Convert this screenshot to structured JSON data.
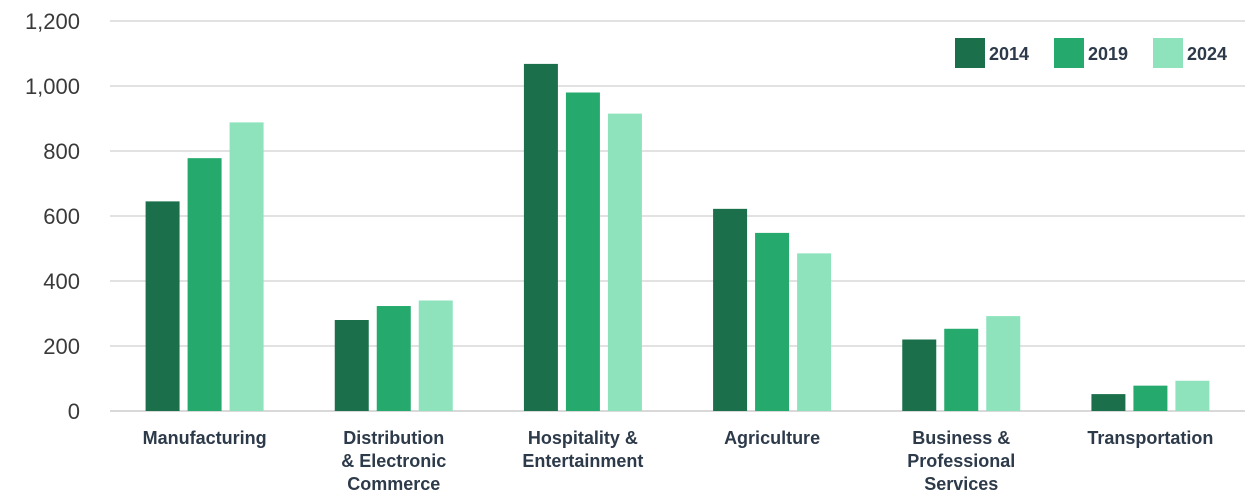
{
  "chart_data": {
    "type": "bar",
    "title": "",
    "xlabel": "",
    "ylabel": "",
    "ylim": [
      0,
      1200
    ],
    "yticks": [
      0,
      200,
      400,
      600,
      800,
      1000,
      1200
    ],
    "ytick_labels": [
      "0",
      "200",
      "400",
      "600",
      "800",
      "1,000",
      "1,200"
    ],
    "grid": true,
    "legend_position": "top-right",
    "categories": [
      [
        "Manufacturing"
      ],
      [
        "Distribution",
        "& Electronic",
        "Commerce"
      ],
      [
        "Hospitality &",
        "Entertainment"
      ],
      [
        "Agriculture"
      ],
      [
        "Business &",
        "Professional",
        "Services"
      ],
      [
        "Transportation"
      ]
    ],
    "series": [
      {
        "name": "2014",
        "color": "#1b704b",
        "values": [
          645,
          280,
          1068,
          622,
          220,
          52
        ]
      },
      {
        "name": "2019",
        "color": "#25a96d",
        "values": [
          778,
          323,
          980,
          548,
          253,
          78
        ]
      },
      {
        "name": "2024",
        "color": "#8ee3bd",
        "values": [
          888,
          340,
          915,
          485,
          292,
          93
        ]
      }
    ]
  }
}
